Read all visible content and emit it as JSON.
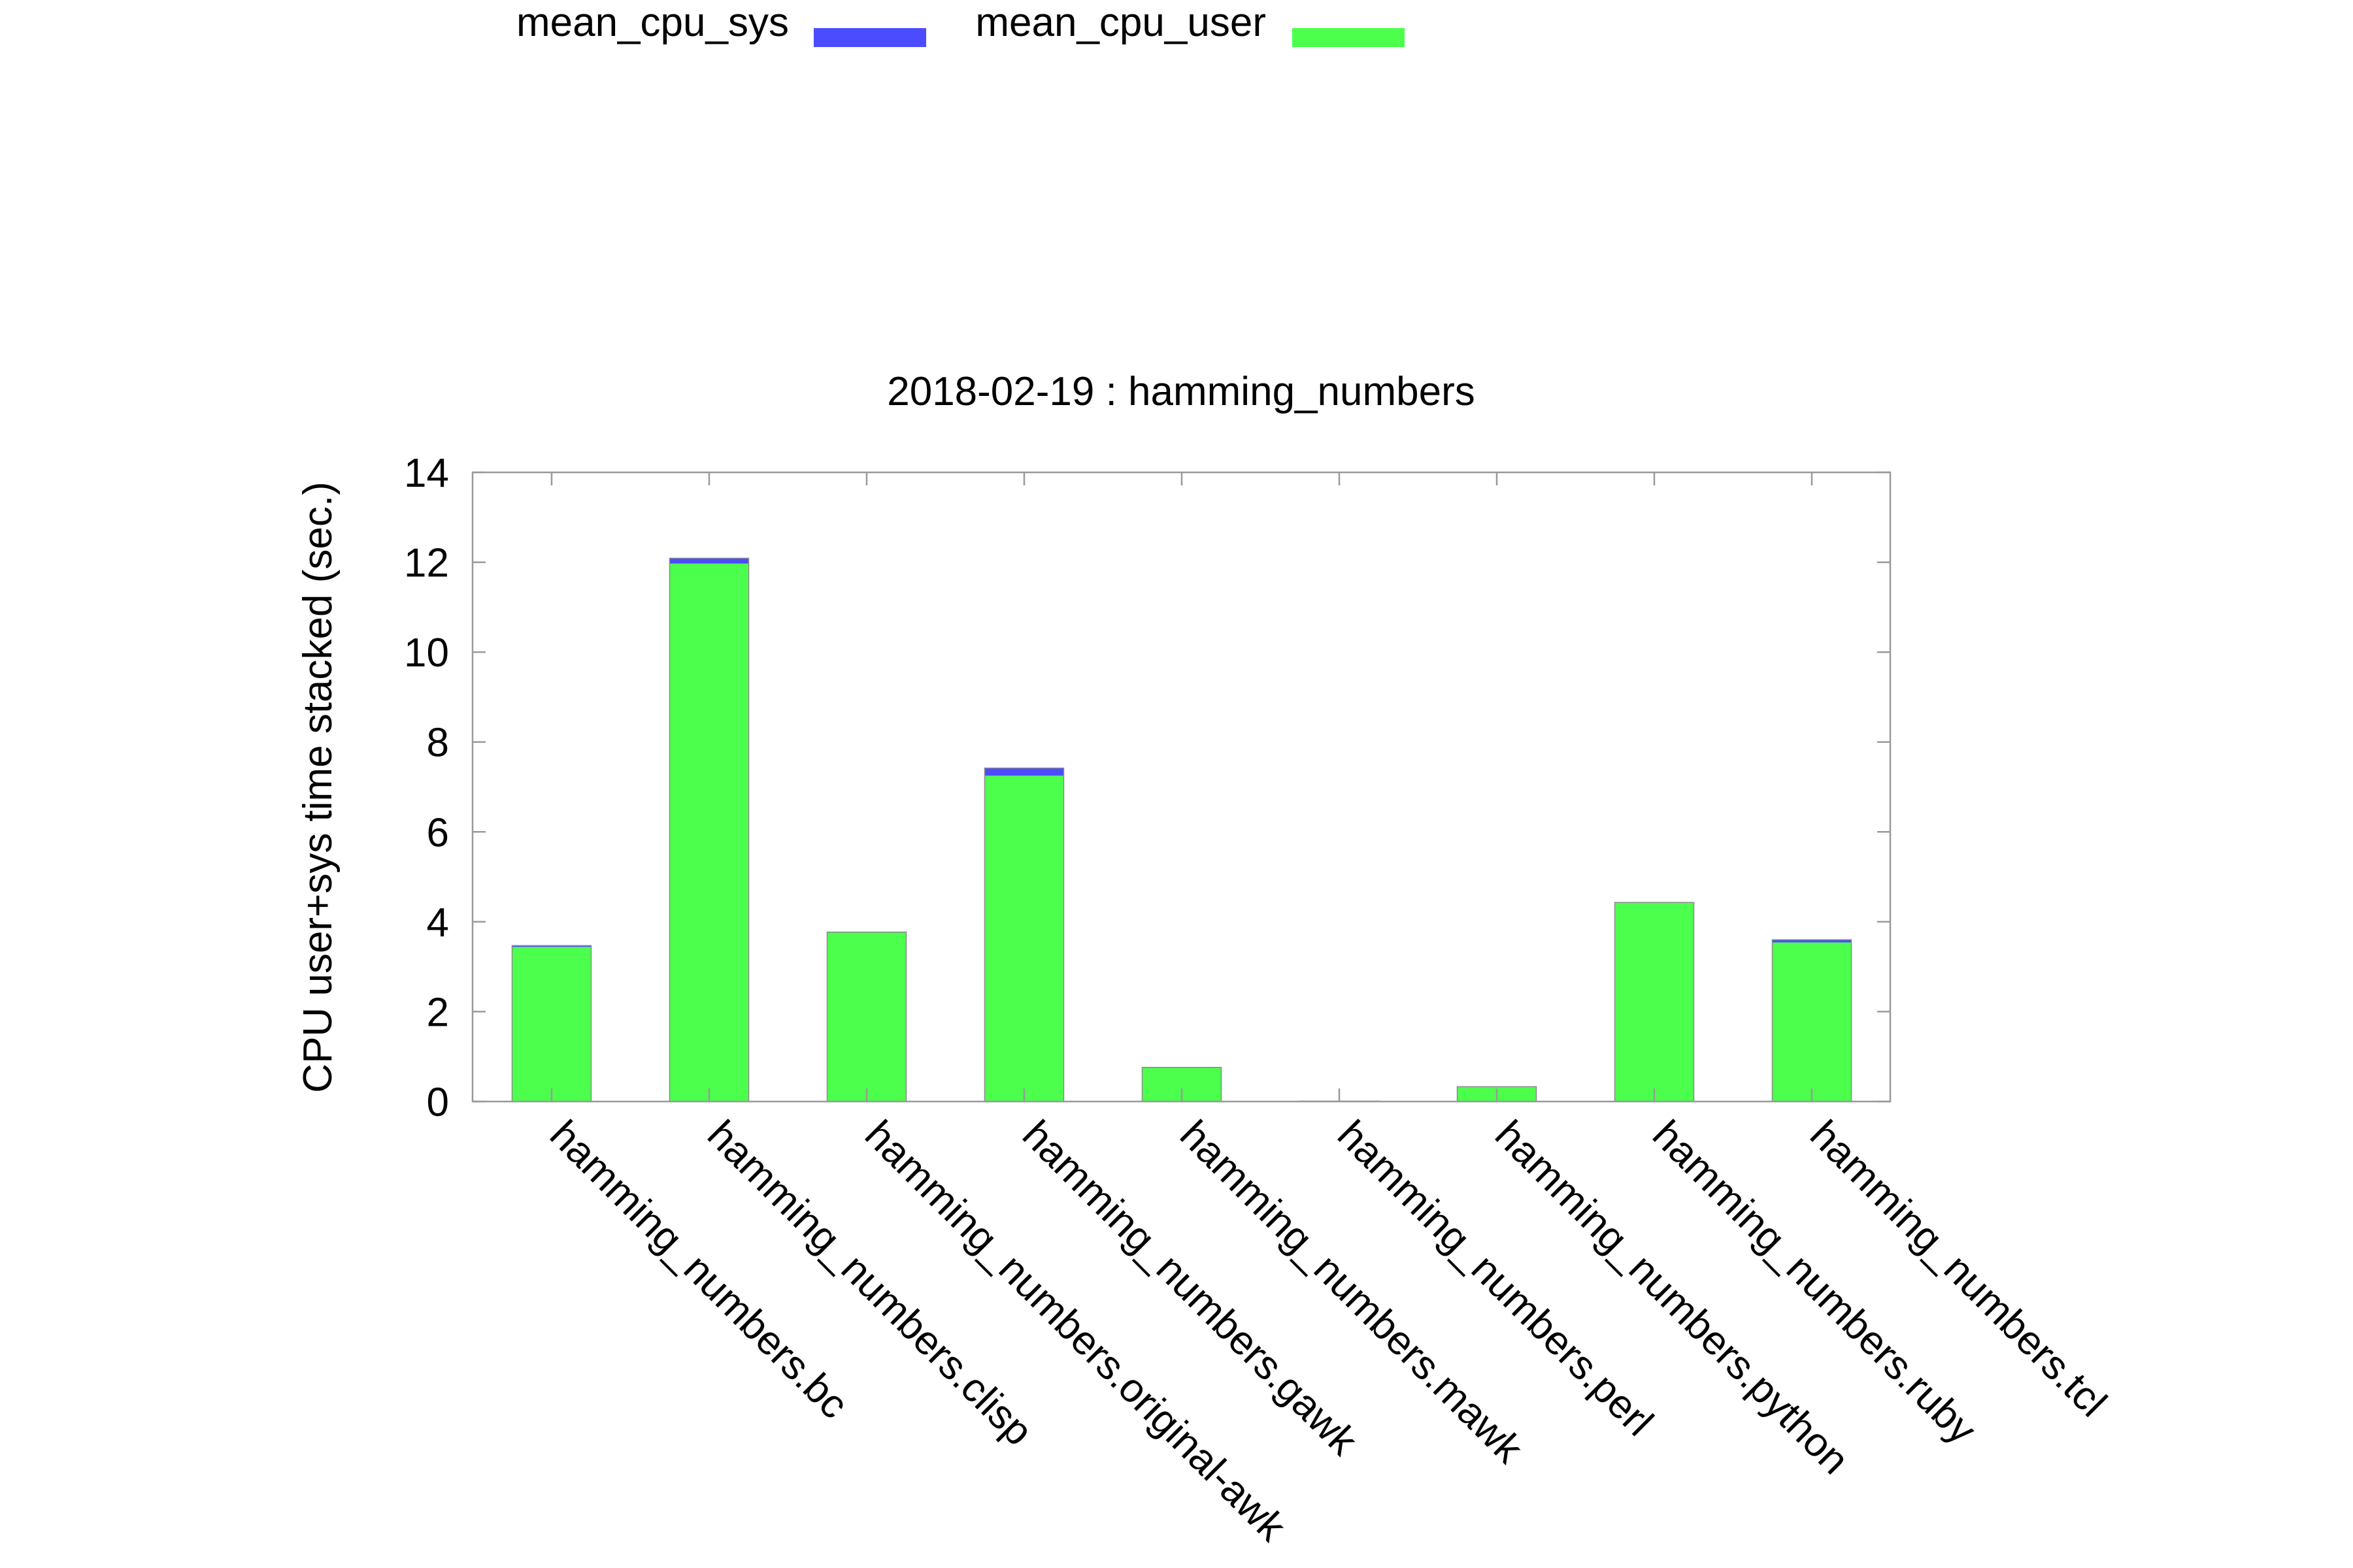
{
  "chart_data": {
    "type": "bar",
    "stacked": true,
    "title": "2018-02-19 : hamming_numbers",
    "ylabel": "CPU user+sys time stacked (sec.)",
    "xlabel": "",
    "ylim": [
      0,
      14
    ],
    "yticks": [
      0,
      2,
      4,
      6,
      8,
      10,
      12,
      14
    ],
    "grid": false,
    "legend_position": "top",
    "categories": [
      "hamming_numbers.bc",
      "hamming_numbers.clisp",
      "hamming_numbers.original-awk",
      "hamming_numbers.gawk",
      "hamming_numbers.mawk",
      "hamming_numbers.perl",
      "hamming_numbers.python",
      "hamming_numbers.ruby",
      "hamming_numbers.tcl"
    ],
    "series": [
      {
        "name": "mean_cpu_user",
        "color": "#4cff4c",
        "values": [
          3.44,
          11.97,
          3.76,
          7.25,
          0.75,
          0.01,
          0.32,
          4.42,
          3.54
        ]
      },
      {
        "name": "mean_cpu_sys",
        "color": "#4c4cff",
        "values": [
          0.03,
          0.12,
          0.01,
          0.17,
          0.01,
          0.0,
          0.01,
          0.01,
          0.06
        ]
      }
    ],
    "legend_order": [
      "mean_cpu_sys",
      "mean_cpu_user"
    ]
  }
}
